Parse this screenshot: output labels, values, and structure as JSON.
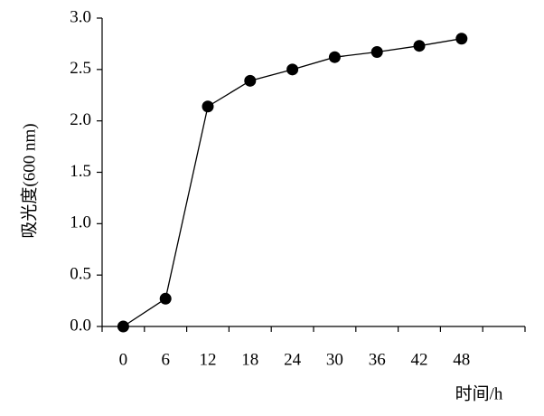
{
  "chart_data": {
    "type": "line",
    "x_label": "时间/h",
    "y_label": "吸光度(600 nm)",
    "categories": [
      "0",
      "6",
      "12",
      "18",
      "24",
      "30",
      "36",
      "42",
      "48",
      null
    ],
    "series": [
      {
        "name": "吸光度",
        "color": "#000000",
        "values": [
          0.0,
          0.27,
          2.14,
          2.39,
          2.5,
          2.62,
          2.67,
          2.73,
          2.8,
          null
        ]
      }
    ],
    "ylim": [
      0,
      3
    ],
    "yticks": [
      {
        "value": 0,
        "label": "0.0"
      },
      {
        "value": 0.5,
        "label": "0.5"
      },
      {
        "value": 1,
        "label": "1.0"
      },
      {
        "value": 1.5,
        "label": "1.5"
      },
      {
        "value": 2,
        "label": "2.0"
      },
      {
        "value": 2.5,
        "label": "2.5"
      },
      {
        "value": 3,
        "label": "3.0"
      }
    ],
    "grid": false
  }
}
